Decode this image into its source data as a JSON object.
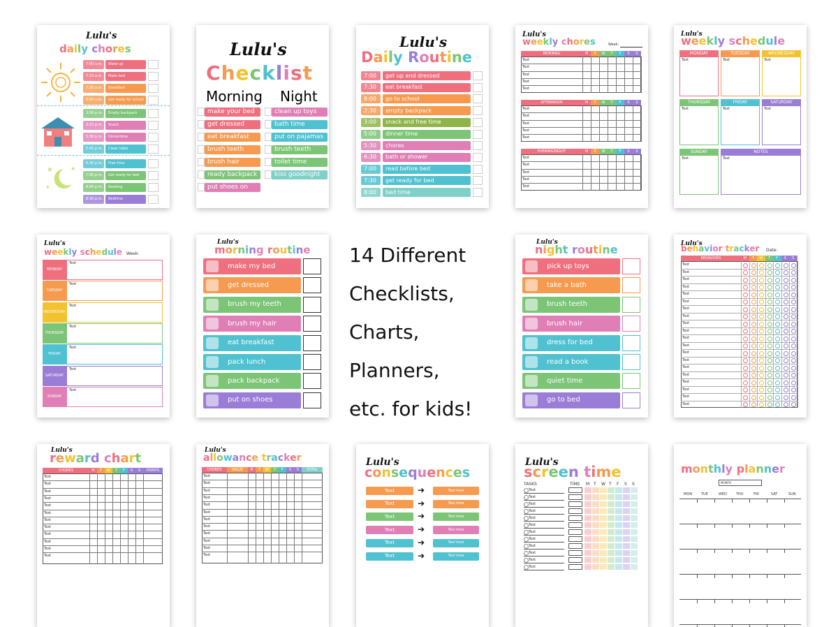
{
  "tagline": [
    "14 Different",
    "Checklists,",
    "Charts,",
    "Planners,",
    "etc. for kids!"
  ],
  "palette": [
    "#f06f7f",
    "#f59a4f",
    "#f2c230",
    "#7cc576",
    "#4fc1d0",
    "#9a7dd6",
    "#e07fb5",
    "#7fd0c8"
  ],
  "brand_name": "Lulu's",
  "cards": {
    "daily_chores": {
      "title": "daily chores",
      "morning": [
        [
          "7:00 a.m.",
          "Wake up"
        ],
        [
          "7:15 a.m.",
          "Make bed"
        ],
        [
          "7:30 a.m.",
          "Breakfast"
        ],
        [
          "8:00 a.m.",
          "Get ready for school"
        ]
      ],
      "afternoon": [
        [
          "3:00 p.m.",
          "Empty backpack"
        ],
        [
          "3:15 p.m.",
          "Snack"
        ],
        [
          "5:30 p.m.",
          "Dinnertime"
        ],
        [
          "5:45 p.m.",
          "Clean table"
        ]
      ],
      "evening": [
        [
          "6:30 p.m.",
          "Free time"
        ],
        [
          "7:00 p.m.",
          "Get ready for bed"
        ],
        [
          "8:00 p.m.",
          "Reading"
        ],
        [
          "8:30 p.m.",
          "Bedtime"
        ]
      ]
    },
    "checklist": {
      "title": "Checklist",
      "morning_label": "Morning",
      "night_label": "Night",
      "morning": [
        "make your bed",
        "get dressed",
        "eat breakfast",
        "brush teeth",
        "brush hair",
        "ready backpack",
        "put shoes on"
      ],
      "night": [
        "clean up toys",
        "bath time",
        "put on pajamas",
        "brush teeth",
        "toilet time",
        "kiss goodnight"
      ]
    },
    "daily_routine": {
      "title": "Daily Routine",
      "rows": [
        [
          "7:00",
          "get up and dressed"
        ],
        [
          "7:30",
          "eat breakfast"
        ],
        [
          "8:00",
          "go to school"
        ],
        [
          "2:30",
          "empty backpack"
        ],
        [
          "3:00",
          "snack and free time"
        ],
        [
          "5:00",
          "dinner time"
        ],
        [
          "5:30",
          "chores"
        ],
        [
          "6:30",
          "bath or shower"
        ],
        [
          "7:00",
          "read before bed"
        ],
        [
          "7:30",
          "get ready for bed"
        ],
        [
          "8:00",
          "bed time"
        ]
      ]
    },
    "weekly_chores": {
      "title": "weekly chores",
      "week_label": "Week:",
      "sections": [
        "MORNING",
        "AFTERNOON",
        "EVENING/NIGHT"
      ],
      "days": [
        "M",
        "T",
        "W",
        "T",
        "F",
        "S",
        "S"
      ],
      "cell_text": "Text"
    },
    "weekly_schedule_1": {
      "title": "weekly schedule",
      "days": [
        "MONDAY",
        "TUESDAY",
        "WEDNESDAY",
        "THURSDAY",
        "FRIDAY",
        "SATURDAY",
        "SUNDAY",
        "NOTES"
      ],
      "cell_text": "Text"
    },
    "weekly_schedule_2": {
      "title": "weekly schedule",
      "week_label": "Week:",
      "days": [
        "MONDAY",
        "TUESDAY",
        "WEDNESDAY",
        "THURSDAY",
        "FRIDAY",
        "SATURDAY",
        "SUNDAY"
      ],
      "cell_text": "Text"
    },
    "morning_routine": {
      "title": "morning routine",
      "items": [
        "make my bed",
        "get dressed",
        "brush my teeth",
        "brush my hair",
        "eat breakfast",
        "pack lunch",
        "pack backpack",
        "put on shoes"
      ]
    },
    "night_routine": {
      "title": "night routine",
      "items": [
        "pick up toys",
        "take a bath",
        "brush teeth",
        "brush hair",
        "dress for bed",
        "read a book",
        "quiet time",
        "go to bed"
      ]
    },
    "behavior_tracker": {
      "title": "behavior tracker",
      "date_label": "Date:",
      "header": "BEHAVIORS",
      "days": [
        "M",
        "T",
        "W",
        "T",
        "F",
        "S",
        "S"
      ],
      "cell_text": "Text"
    },
    "reward_chart": {
      "title": "reward chart",
      "headers": [
        "CHORES",
        "M",
        "T",
        "W",
        "T",
        "F",
        "S",
        "S",
        "POINTS"
      ],
      "cell_text": "Text"
    },
    "allowance_tracker": {
      "title": "allowance tracker",
      "headers": [
        "CHORES",
        "VALUE",
        "M",
        "T",
        "W",
        "T",
        "F",
        "S",
        "S",
        "TOTAL"
      ],
      "cell_text": "Text"
    },
    "consequences": {
      "title": "consequences",
      "left_text": "Text",
      "right_text": "Text here"
    },
    "screen_time": {
      "title": "screen time",
      "tasks_label": "TASKS",
      "time_label": "TIME",
      "days": [
        "M",
        "T",
        "W",
        "T",
        "F",
        "S",
        "S"
      ],
      "cell_text": "Text"
    },
    "monthly_planner": {
      "title": "monthly planner",
      "month_label": "MONTH",
      "days": [
        "MON",
        "TUE",
        "WED",
        "THU",
        "FRI",
        "SAT",
        "SUN"
      ]
    }
  }
}
